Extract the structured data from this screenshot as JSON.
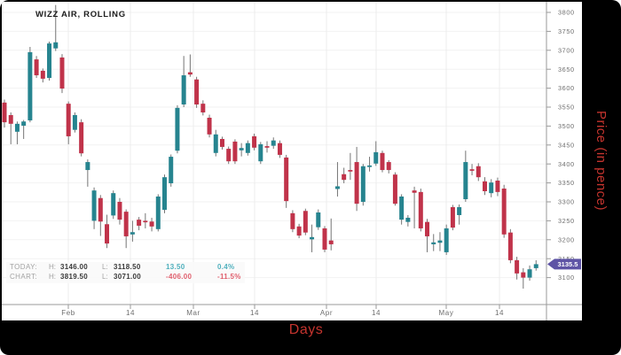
{
  "title": "WIZZ AIR, ROLLING",
  "axes": {
    "y_title": "Price (in pence)",
    "x_title": "Days"
  },
  "last_price": {
    "value": "3135.5"
  },
  "legend": {
    "labels": {
      "h": "H:",
      "l": "L:"
    },
    "today": {
      "label": "TODAY:",
      "high": "3146.00",
      "low": "3118.50",
      "change": "13.50",
      "change_pct": "0.4%"
    },
    "chart": {
      "label": "CHART:",
      "high": "3819.50",
      "low": "3071.00",
      "change": "-406.00",
      "change_pct": "-11.5%"
    }
  },
  "colors": {
    "up": "#26848f",
    "down": "#c0334a",
    "wick": "#757575",
    "grid_h": "#f2f2f2",
    "grid_v": "#ececec",
    "axis": "#9a9a9a",
    "tick_label": "#6e6e6e",
    "badge_bg": "#5e54a5",
    "badge_text": "#ffffff",
    "axis_title": "#c5342e",
    "pos_change": "#4fb0bd",
    "neg_change": "#e0606e"
  },
  "chart_data": {
    "type": "candlestick",
    "title": "WIZZ AIR, ROLLING",
    "ylabel": "Price (in pence)",
    "xlabel": "Days",
    "ylim": [
      3060,
      3830
    ],
    "y_tick_max": 3800,
    "y_tick_min": 3100,
    "y_tick_step": 50,
    "grid": true,
    "last_close": 3135.5,
    "today_high": 3146.0,
    "today_low": 3118.5,
    "chart_high": 3819.5,
    "chart_low": 3071.0,
    "x_ticks": [
      {
        "label": "Feb",
        "x": 77
      },
      {
        "label": "14",
        "x": 147
      },
      {
        "label": "Mar",
        "x": 218
      },
      {
        "label": "14",
        "x": 287
      },
      {
        "label": "Apr",
        "x": 368
      },
      {
        "label": "14",
        "x": 424
      },
      {
        "label": "May",
        "x": 503
      },
      {
        "label": "14",
        "x": 563
      }
    ],
    "ohlc_legend": "[open, high, low, close] in pence, one entry per trading day, Jan-end through mid-May",
    "candles": [
      [
        3562,
        3570,
        3496,
        3510
      ],
      [
        3529,
        3536,
        3452,
        3506
      ],
      [
        3485,
        3512,
        3452,
        3506
      ],
      [
        3501,
        3516,
        3466,
        3512
      ],
      [
        3515,
        3709,
        3510,
        3695
      ],
      [
        3676,
        3685,
        3627,
        3634
      ],
      [
        3646,
        3652,
        3615,
        3625
      ],
      [
        3627,
        3723,
        3620,
        3718
      ],
      [
        3705,
        3819.5,
        3698,
        3721
      ],
      [
        3681,
        3690,
        3587,
        3599
      ],
      [
        3559,
        3565,
        3452,
        3473
      ],
      [
        3490,
        3536,
        3483,
        3529
      ],
      [
        3510,
        3518,
        3420,
        3428
      ],
      [
        3384,
        3412,
        3340,
        3405
      ],
      [
        3250,
        3338,
        3228,
        3330
      ],
      [
        3310,
        3318,
        3210,
        3248
      ],
      [
        3241,
        3266,
        3178,
        3190
      ],
      [
        3264,
        3330,
        3255,
        3323
      ],
      [
        3300,
        3310,
        3240,
        3253
      ],
      [
        3274,
        3280,
        3178,
        3209
      ],
      [
        3214,
        3250,
        3195,
        3220
      ],
      [
        3253,
        3260,
        3225,
        3237
      ],
      [
        3250,
        3270,
        3230,
        3246
      ],
      [
        3248,
        3258,
        3222,
        3235
      ],
      [
        3228,
        3320,
        3222,
        3314
      ],
      [
        3279,
        3372,
        3270,
        3365
      ],
      [
        3349,
        3425,
        3340,
        3419
      ],
      [
        3435,
        3555,
        3428,
        3548
      ],
      [
        3557,
        3685,
        3550,
        3634
      ],
      [
        3642,
        3689,
        3630,
        3636
      ],
      [
        3623,
        3630,
        3548,
        3557
      ],
      [
        3559,
        3568,
        3528,
        3536
      ],
      [
        3522,
        3530,
        3470,
        3478
      ],
      [
        3429,
        3490,
        3420,
        3478
      ],
      [
        3466,
        3472,
        3438,
        3445
      ],
      [
        3440,
        3446,
        3400,
        3407
      ],
      [
        3459,
        3465,
        3400,
        3407
      ],
      [
        3436,
        3455,
        3420,
        3442
      ],
      [
        3429,
        3462,
        3422,
        3455
      ],
      [
        3473,
        3480,
        3436,
        3443
      ],
      [
        3407,
        3458,
        3400,
        3452
      ],
      [
        3447,
        3460,
        3430,
        3443
      ],
      [
        3448,
        3470,
        3440,
        3462
      ],
      [
        3455,
        3462,
        3416,
        3424
      ],
      [
        3417,
        3424,
        3284,
        3302
      ],
      [
        3270,
        3278,
        3220,
        3228
      ],
      [
        3235,
        3242,
        3204,
        3211
      ],
      [
        3276,
        3282,
        3212,
        3219
      ],
      [
        3201,
        3240,
        3167,
        3207
      ],
      [
        3233,
        3280,
        3226,
        3272
      ],
      [
        3230,
        3236,
        3167,
        3174
      ],
      [
        3198,
        3256,
        3172,
        3188
      ],
      [
        3334,
        3405,
        3314,
        3341
      ],
      [
        3373,
        3390,
        3349,
        3358
      ],
      [
        3384,
        3429,
        3358,
        3380
      ],
      [
        3405,
        3445,
        3276,
        3295
      ],
      [
        3300,
        3400,
        3290,
        3394
      ],
      [
        3392,
        3419,
        3380,
        3396
      ],
      [
        3401,
        3460,
        3395,
        3431
      ],
      [
        3429,
        3435,
        3378,
        3384
      ],
      [
        3405,
        3410,
        3375,
        3384
      ],
      [
        3372,
        3378,
        3290,
        3295
      ],
      [
        3253,
        3320,
        3240,
        3314
      ],
      [
        3247,
        3265,
        3235,
        3258
      ],
      [
        3330,
        3340,
        3230,
        3324
      ],
      [
        3326,
        3335,
        3222,
        3230
      ],
      [
        3247,
        3255,
        3167,
        3209
      ],
      [
        3188,
        3215,
        3170,
        3193
      ],
      [
        3192,
        3220,
        3170,
        3198
      ],
      [
        3167,
        3240,
        3160,
        3230
      ],
      [
        3286,
        3292,
        3225,
        3232
      ],
      [
        3265,
        3293,
        3240,
        3286
      ],
      [
        3307,
        3435,
        3300,
        3405
      ],
      [
        3386,
        3400,
        3370,
        3382
      ],
      [
        3394,
        3402,
        3355,
        3365
      ],
      [
        3354,
        3365,
        3318,
        3328
      ],
      [
        3323,
        3360,
        3312,
        3351
      ],
      [
        3356,
        3364,
        3315,
        3326
      ],
      [
        3335,
        3345,
        3205,
        3214
      ],
      [
        3219,
        3228,
        3138,
        3146
      ],
      [
        3146,
        3155,
        3095,
        3111
      ],
      [
        3114,
        3125,
        3071,
        3100
      ],
      [
        3100,
        3132,
        3092,
        3122
      ],
      [
        3125,
        3146,
        3118.5,
        3135.5
      ]
    ]
  }
}
